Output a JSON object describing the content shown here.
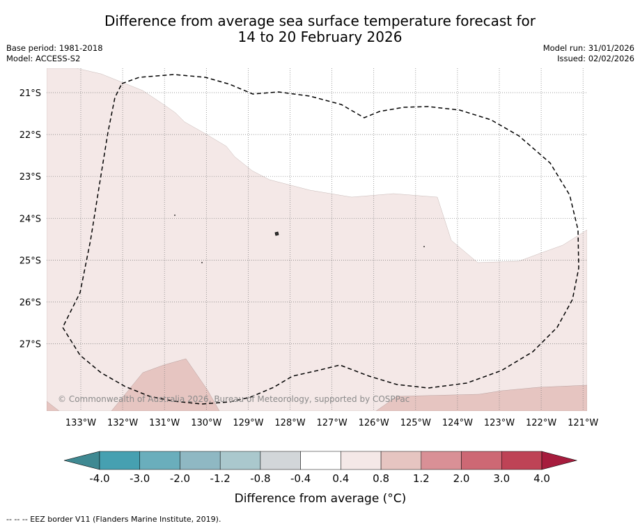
{
  "title": {
    "line1": "Difference from average sea surface temperature forecast for",
    "line2": "14 to 20 February 2026"
  },
  "meta": {
    "base_period": "Base period: 1981-2018",
    "model": "Model: ACCESS-S2",
    "model_run": "Model run: 31/01/2026",
    "issued": "Issued: 02/02/2026"
  },
  "map": {
    "lat_labels": [
      "21°S",
      "22°S",
      "23°S",
      "24°S",
      "25°S",
      "26°S",
      "27°S"
    ],
    "lon_labels": [
      "133°W",
      "132°W",
      "131°W",
      "130°W",
      "129°W",
      "128°W",
      "127°W",
      "126°W",
      "125°W",
      "124°W",
      "123°W",
      "122°W",
      "121°W"
    ],
    "copyright": "© Commonwealth of Australia 2026, Bureau of Meteorology, supported by COSPPac",
    "colors": {
      "anom_0_4_to_0_8": "#f4e8e7",
      "anom_0_8_to_1_2": "#e6c5c1",
      "land": "#333333"
    }
  },
  "colorbar": {
    "ticks": [
      "-4.0",
      "-3.0",
      "-2.0",
      "-1.2",
      "-0.8",
      "-0.4",
      "0.4",
      "0.8",
      "1.2",
      "2.0",
      "3.0",
      "4.0"
    ],
    "colors": [
      "#3f8992",
      "#46a0b1",
      "#6aaebc",
      "#8fb8c3",
      "#aac8cd",
      "#d2d6d9",
      "#ffffff",
      "#f4e8e7",
      "#e6c5c1",
      "#d99096",
      "#cd6874",
      "#be4356",
      "#a61c3d"
    ],
    "label": "Difference from average (°C)"
  },
  "footer": "-- -- -- EEZ border V11 (Flanders Marine Institute, 2019)."
}
